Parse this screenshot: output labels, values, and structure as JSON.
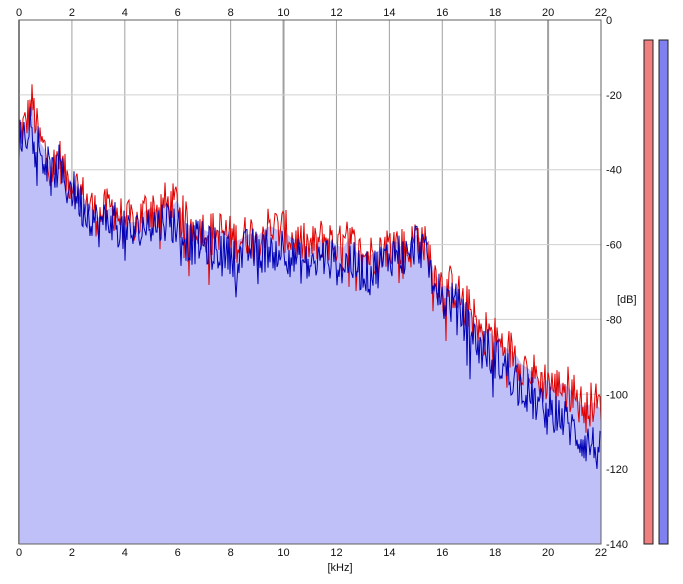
{
  "chart_data": {
    "type": "area",
    "title": "",
    "xlabel": "[kHz]",
    "ylabel": "[dB]",
    "xlim": [
      0,
      22
    ],
    "ylim": [
      -140,
      0
    ],
    "x_ticks": [
      "0",
      "2",
      "4",
      "6",
      "8",
      "10",
      "12",
      "14",
      "16",
      "18",
      "20",
      "22"
    ],
    "y_ticks": [
      "0",
      "-20",
      "-40",
      "-60",
      "-80",
      "-100",
      "-120",
      "-140"
    ],
    "grid": true,
    "colors": {
      "left_channel": "#e00000",
      "right_channel": "#0000b4",
      "area_fill": "#c0c0f8",
      "left_meter": "#f08080",
      "right_meter": "#8080f0",
      "grid": "#a0a0a0"
    },
    "series": [
      {
        "channel": "left",
        "x": [
          0,
          0.25,
          0.5,
          0.75,
          1,
          1.25,
          1.5,
          1.75,
          2,
          2.25,
          2.5,
          2.75,
          3,
          3.25,
          3.5,
          3.75,
          4,
          4.25,
          4.5,
          4.75,
          5,
          5.25,
          5.5,
          5.75,
          6,
          6.25,
          6.5,
          6.75,
          7,
          7.25,
          7.5,
          7.75,
          8,
          8.25,
          8.5,
          8.75,
          9,
          9.25,
          9.5,
          9.75,
          10,
          10.25,
          10.5,
          10.75,
          11,
          11.25,
          11.5,
          11.75,
          12,
          12.25,
          12.5,
          12.75,
          13,
          13.25,
          13.5,
          13.75,
          14,
          14.25,
          14.5,
          14.75,
          15,
          15.25,
          15.5,
          15.75,
          16,
          16.25,
          16.5,
          16.75,
          17,
          17.25,
          17.5,
          17.75,
          18,
          18.25,
          18.5,
          18.75,
          19,
          19.25,
          19.5,
          19.75,
          20,
          20.25,
          20.5,
          20.75,
          21,
          21.25,
          21.5,
          21.75,
          22
        ],
        "values": [
          -30,
          -28,
          -22,
          -32,
          -35,
          -40,
          -36,
          -42,
          -43,
          -45,
          -48,
          -50,
          -53,
          -51,
          -50,
          -52,
          -54,
          -54,
          -54,
          -51,
          -50,
          -51,
          -49,
          -50,
          -48,
          -54,
          -55,
          -55,
          -56,
          -57,
          -56,
          -57,
          -58,
          -59,
          -58,
          -57,
          -58,
          -56,
          -55,
          -56,
          -56,
          -58,
          -59,
          -60,
          -61,
          -60,
          -58,
          -59,
          -60,
          -61,
          -58,
          -62,
          -63,
          -63,
          -62,
          -61,
          -60,
          -59,
          -61,
          -62,
          -57,
          -59,
          -63,
          -68,
          -71,
          -71,
          -72,
          -75,
          -77,
          -81,
          -83,
          -83,
          -85,
          -87,
          -88,
          -89,
          -92,
          -93,
          -95,
          -97,
          -96,
          -99,
          -97,
          -98,
          -100,
          -103,
          -103,
          -102,
          -104
        ]
      },
      {
        "channel": "right",
        "x": [
          0,
          0.25,
          0.5,
          0.75,
          1,
          1.25,
          1.5,
          1.75,
          2,
          2.25,
          2.5,
          2.75,
          3,
          3.25,
          3.5,
          3.75,
          4,
          4.25,
          4.5,
          4.75,
          5,
          5.25,
          5.5,
          5.75,
          6,
          6.25,
          6.5,
          6.75,
          7,
          7.25,
          7.5,
          7.75,
          8,
          8.25,
          8.5,
          8.75,
          9,
          9.25,
          9.5,
          9.75,
          10,
          10.25,
          10.5,
          10.75,
          11,
          11.25,
          11.5,
          11.75,
          12,
          12.25,
          12.5,
          12.75,
          13,
          13.25,
          13.5,
          13.75,
          14,
          14.25,
          14.5,
          14.75,
          15,
          15.25,
          15.5,
          15.75,
          16,
          16.25,
          16.5,
          16.75,
          17,
          17.25,
          17.5,
          17.75,
          18,
          18.25,
          18.5,
          18.75,
          19,
          19.25,
          19.5,
          19.75,
          20,
          20.25,
          20.5,
          20.75,
          21,
          21.25,
          21.5,
          21.75,
          22
        ],
        "values": [
          -32,
          -30,
          -24,
          -34,
          -38,
          -42,
          -39,
          -44,
          -45,
          -48,
          -51,
          -52,
          -55,
          -54,
          -53,
          -55,
          -57,
          -57,
          -57,
          -55,
          -54,
          -55,
          -53,
          -54,
          -55,
          -58,
          -60,
          -59,
          -60,
          -61,
          -61,
          -62,
          -62,
          -64,
          -62,
          -61,
          -62,
          -62,
          -60,
          -62,
          -60,
          -63,
          -64,
          -65,
          -66,
          -65,
          -63,
          -64,
          -65,
          -66,
          -64,
          -66,
          -67,
          -68,
          -66,
          -65,
          -63,
          -62,
          -63,
          -64,
          -59,
          -61,
          -66,
          -71,
          -75,
          -75,
          -76,
          -79,
          -82,
          -86,
          -88,
          -88,
          -90,
          -92,
          -94,
          -95,
          -99,
          -100,
          -102,
          -104,
          -103,
          -105,
          -106,
          -108,
          -110,
          -112,
          -113,
          -114,
          -116
        ]
      }
    ],
    "level_meters": {
      "left": -1,
      "right": -1
    }
  }
}
